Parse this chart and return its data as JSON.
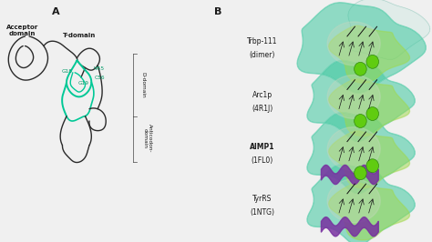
{
  "panel_a_label": "A",
  "panel_b_label": "B",
  "bg_color": "#f0f0f0",
  "text_color": "#1a1a1a",
  "tRNA_dark": "#2a2a2a",
  "tRNA_green": "#00c896",
  "label_acceptor": "Acceptor\ndomain",
  "label_t_domain": "T-domain",
  "label_v55": "Ψ55",
  "label_c56": "C56",
  "label_g18": "G18",
  "label_g19": "G19",
  "label_d": "D-domain",
  "label_anti": "Anticodon-\ndomain",
  "entries": [
    {
      "name": "Trbp-111",
      "sub": "(dimer)",
      "bold": false,
      "has_purple": false,
      "has_spheres": false
    },
    {
      "name": "Arc1p",
      "sub": "(4R1J)",
      "bold": false,
      "has_purple": false,
      "has_spheres": true
    },
    {
      "name": "AIMP1",
      "sub": "(1FL0)",
      "bold": true,
      "has_purple": true,
      "has_spheres": true
    },
    {
      "name": "TyrRS",
      "sub": "(1NTG)",
      "bold": false,
      "has_purple": true,
      "has_spheres": true
    }
  ],
  "col1": "#40c8a0",
  "col2": "#a0d848",
  "col3": "#7830a0",
  "col4": "#c8d8c0",
  "sphere_col": "#60cc10"
}
